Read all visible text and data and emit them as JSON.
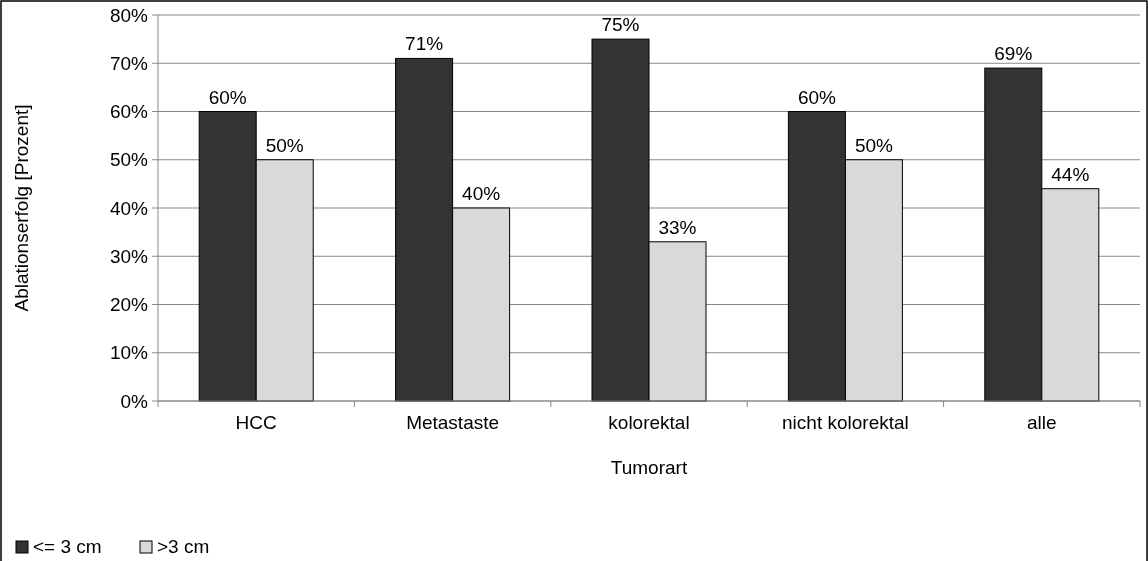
{
  "chart_data": {
    "type": "bar",
    "xlabel": "Tumorart",
    "ylabel": "Ablationserfolg [Prozent]",
    "categories": [
      "HCC",
      "Metastaste",
      "kolorektal",
      "nicht kolorektal",
      "alle"
    ],
    "series": [
      {
        "name": "<= 3 cm",
        "color": "#333333",
        "values": [
          60,
          71,
          75,
          60,
          69
        ],
        "value_labels": [
          "60%",
          "71%",
          "75%",
          "60%",
          "69%"
        ]
      },
      {
        "name": ">3 cm",
        "color": "#d9d9d9",
        "values": [
          50,
          40,
          33,
          50,
          44
        ],
        "value_labels": [
          "50%",
          "40%",
          "33%",
          "50%",
          "44%"
        ]
      }
    ],
    "ylim": [
      0,
      80
    ],
    "yticks": [
      {
        "value": 0,
        "label": "0%"
      },
      {
        "value": 10,
        "label": "10%"
      },
      {
        "value": 20,
        "label": "20%"
      },
      {
        "value": 30,
        "label": "30%"
      },
      {
        "value": 40,
        "label": "40%"
      },
      {
        "value": 50,
        "label": "50%"
      },
      {
        "value": 60,
        "label": "60%"
      },
      {
        "value": 70,
        "label": "70%"
      },
      {
        "value": 80,
        "label": "80%"
      }
    ],
    "grid": "y",
    "legend": "bottom left"
  }
}
